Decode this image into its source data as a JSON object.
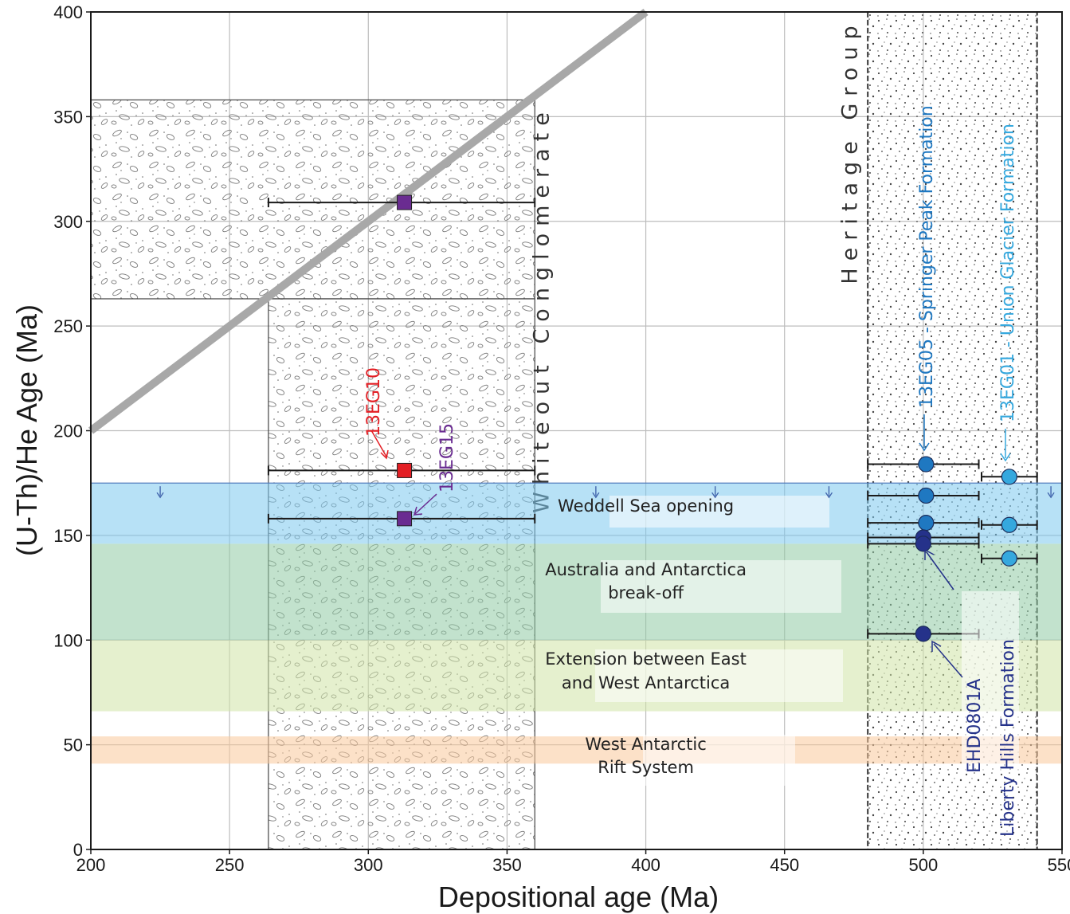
{
  "chart_data": {
    "type": "scatter",
    "xlabel": "Depositional age (Ma)",
    "ylabel": "(U-Th)/He Age (Ma)",
    "xlim": [
      200,
      550
    ],
    "ylim": [
      0,
      400
    ],
    "x_ticks": [
      200,
      250,
      300,
      350,
      400,
      450,
      500,
      550
    ],
    "y_ticks": [
      0,
      50,
      100,
      150,
      200,
      250,
      300,
      350,
      400
    ],
    "grid": true,
    "reference_line": {
      "description": "1:1 line",
      "from": [
        200,
        200
      ],
      "to": [
        400,
        400
      ],
      "color": "#a8a8a8"
    },
    "age_bands": [
      {
        "label_lines": [
          "Weddell Sea opening"
        ],
        "y_range": [
          146,
          175
        ],
        "color": "#7cc8ef"
      },
      {
        "label_lines": [
          "Australia and Antarctica",
          "break-off"
        ],
        "y_range": [
          100,
          146
        ],
        "color": "#8fcaa4"
      },
      {
        "label_lines": [
          "Extension between East",
          "and West Antarctica"
        ],
        "y_range": [
          66,
          100
        ],
        "color": "#cfe3a5"
      },
      {
        "label_lines": [
          "West Antarctic",
          "Rift System"
        ],
        "y_range": [
          41,
          54
        ],
        "color": "#f9c99b"
      }
    ],
    "units": [
      {
        "label": "Whiteout Conglomerate",
        "x_range": [
          264,
          360
        ],
        "pattern": "conglomerate"
      },
      {
        "label": "Heritage Group",
        "x_range": [
          480,
          541
        ],
        "pattern": "sandstone"
      }
    ],
    "series": [
      {
        "name": "13EG10",
        "color": "#e31e24",
        "marker": "square",
        "points": [
          {
            "x": 313,
            "y": 181,
            "xerr": [
              264,
              360
            ]
          }
        ]
      },
      {
        "name": "13EG15",
        "color": "#6a2c91",
        "marker": "square",
        "points": [
          {
            "x": 313,
            "y": 309,
            "xerr": [
              264,
              360
            ]
          },
          {
            "x": 313,
            "y": 158,
            "xerr": [
              264,
              360
            ]
          }
        ]
      },
      {
        "name": "13EG05 - Springer Peak Formation",
        "color": "#1f78c1",
        "marker": "circle",
        "points": [
          {
            "x": 501,
            "y": 184,
            "xerr": [
              480,
              520
            ]
          },
          {
            "x": 501,
            "y": 169,
            "xerr": [
              480,
              520
            ]
          },
          {
            "x": 501,
            "y": 156,
            "xerr": [
              480,
              520
            ]
          }
        ]
      },
      {
        "name": "13EG01 - Union Glacier Formation",
        "color": "#35a8de",
        "marker": "circle",
        "points": [
          {
            "x": 531,
            "y": 178,
            "xerr": [
              521,
              541
            ]
          },
          {
            "x": 531,
            "y": 155,
            "xerr": [
              521,
              541
            ]
          },
          {
            "x": 531,
            "y": 139,
            "xerr": [
              521,
              541
            ]
          }
        ]
      },
      {
        "name": "EHD0801A",
        "color": "#25328a",
        "marker": "circle",
        "points": [
          {
            "x": 500,
            "y": 149,
            "xerr": [
              480,
              520
            ]
          },
          {
            "x": 500,
            "y": 146,
            "xerr": [
              480,
              520
            ]
          },
          {
            "x": 500,
            "y": 103,
            "xerr": [
              480,
              520
            ]
          }
        ]
      }
    ],
    "formation_label": "Liberty Hills Formation"
  }
}
